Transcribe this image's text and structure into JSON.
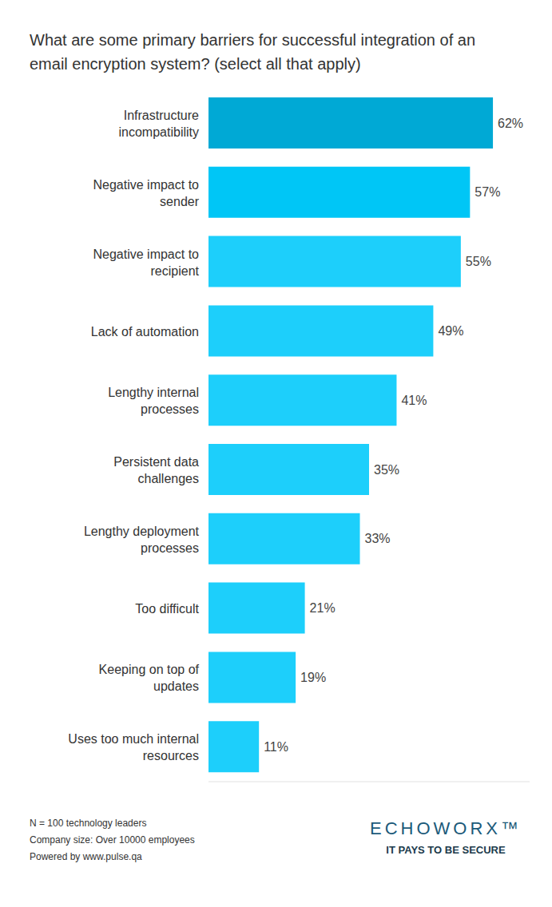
{
  "chart_data": {
    "type": "bar",
    "orientation": "horizontal",
    "title": "What are some primary barriers for successful integration of an email encryption system? (select all that apply)",
    "categories": [
      "Infrastructure incompatibility",
      "Negative impact to sender",
      "Negative impact to recipient",
      "Lack of automation",
      "Lengthy internal processes",
      "Persistent data challenges",
      "Lengthy deployment processes",
      "Too difficult",
      "Keeping on top of updates",
      "Uses too much internal resources"
    ],
    "values": [
      62,
      57,
      55,
      49,
      41,
      35,
      33,
      21,
      19,
      11
    ],
    "value_labels": [
      "62%",
      "57%",
      "55%",
      "49%",
      "41%",
      "35%",
      "33%",
      "21%",
      "19%",
      "11%"
    ],
    "colors": [
      "#00a9d5",
      "#00c6f6",
      "#1dcffb",
      "#1dcffb",
      "#1dcffb",
      "#1dcffb",
      "#1dcffb",
      "#1dcffb",
      "#1dcffb",
      "#1dcffb"
    ],
    "xlim": [
      0,
      70
    ],
    "data_labels": true,
    "tick_labels": "y",
    "grid": false,
    "annotations": [
      "N = 100 technology leaders",
      "Company size: Over 10000 employees",
      "Powered by www.pulse.qa"
    ],
    "logo": "ECHOWORX™",
    "tagline": "IT PAYS TO BE SECURE"
  }
}
